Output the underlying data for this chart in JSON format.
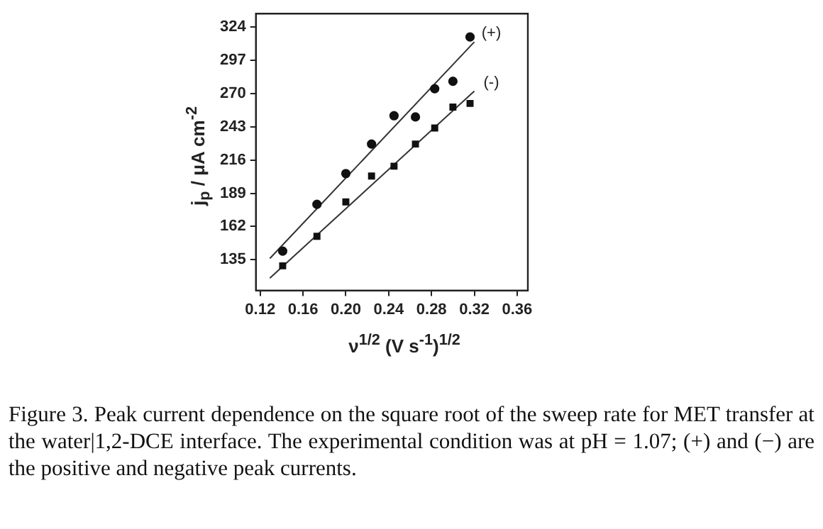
{
  "chart_data": {
    "type": "scatter",
    "xlabel": "ν$^{1/2}$ (V s$^{-1}$)$^{1/2}$",
    "ylabel": "j$_{p}$ / μA cm$^{-2}$",
    "xlim": [
      0.116,
      0.37
    ],
    "ylim": [
      110,
      335
    ],
    "xticks": [
      0.12,
      0.16,
      {
        "value": 0.2,
        "label": "0.20"
      },
      0.24,
      0.28,
      0.32,
      0.36
    ],
    "yticks": [
      135,
      162,
      189,
      216,
      243,
      270,
      297,
      324
    ],
    "grid": false,
    "legend": false,
    "series": [
      {
        "marker": "circle",
        "color": "#111111",
        "x": [
          0.141,
          0.173,
          0.2,
          0.224,
          0.245,
          0.265,
          0.283,
          0.3,
          0.316
        ],
        "values": [
          142,
          180,
          205,
          229,
          252,
          251,
          274,
          280,
          316
        ]
      },
      {
        "marker": "square",
        "color": "#111111",
        "x": [
          0.141,
          0.173,
          0.2,
          0.224,
          0.245,
          0.265,
          0.283,
          0.3,
          0.316
        ],
        "values": [
          130,
          154,
          182,
          203,
          211,
          229,
          242,
          259,
          262
        ]
      },
      {
        "type": "line",
        "name": "(+)",
        "marker": "none",
        "line_style": "solid",
        "color": "#333333",
        "x": [
          0.129,
          0.32
        ],
        "values": [
          136,
          312
        ]
      },
      {
        "type": "line",
        "name": "(-)",
        "marker": "none",
        "line_style": "solid",
        "color": "#333333",
        "x": [
          0.129,
          0.32
        ],
        "values": [
          120,
          272
        ]
      }
    ],
    "annotations": [
      "Figure 3. Peak current dependence on the square root of the sweep rate for MET transfer at the water|1,2-DCE interface. The experimental condition was at pH = 1.07; (+) and (−) are the positive and negative peak currents."
    ]
  }
}
